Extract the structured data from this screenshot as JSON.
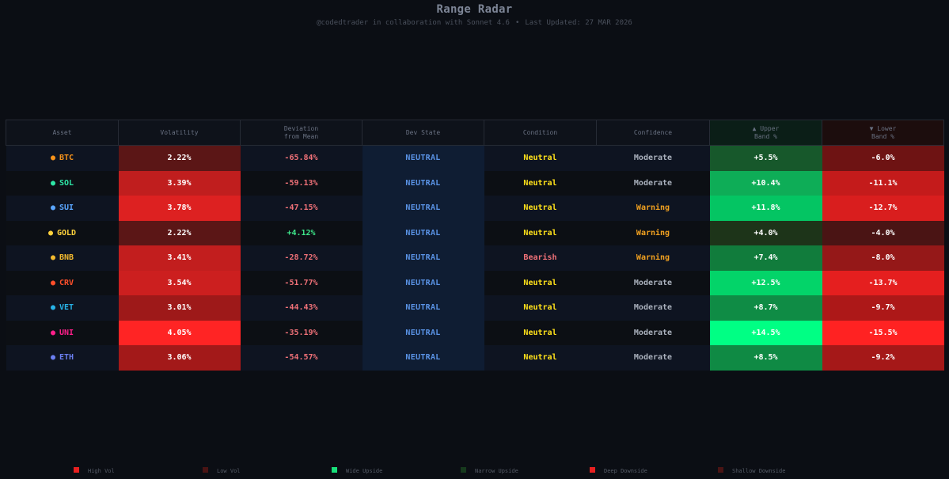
{
  "header": {
    "title": "Range Radar",
    "subtitle_credit": "@codedtrader in collaboration with Sonnet 4.6",
    "separator": "•",
    "subtitle_updated": "Last Updated: 27 MAR 2026"
  },
  "table": {
    "columns": [
      {
        "label": "Asset"
      },
      {
        "label": "Volatility"
      },
      {
        "label": "Deviation",
        "label2": "from Mean"
      },
      {
        "label": "Dev State"
      },
      {
        "label": "Condition"
      },
      {
        "label": "Confidence"
      },
      {
        "label": "▲ Upper",
        "label2": "Band %"
      },
      {
        "label": "▼ Lower",
        "label2": "Band %"
      }
    ],
    "rows": [
      {
        "asset": "BTC",
        "dot": "●",
        "asset_color": "#f7931a",
        "volatility": "2.22%",
        "vol_bg": "#5b1616",
        "deviation": "-65.84%",
        "dev_color": "#f07178",
        "dev_state": "NEUTRAL",
        "condition": "Neutral",
        "cond_color": "#ffe11a",
        "confidence": "Moderate",
        "conf_color": "#aab1bd",
        "upper": "+5.5%",
        "upper_bg": "#17582b",
        "lower": "-6.0%",
        "lower_bg": "#6e1313"
      },
      {
        "asset": "SOL",
        "dot": "●",
        "asset_color": "#2ee6a6",
        "volatility": "3.39%",
        "vol_bg": "#c01e1e",
        "deviation": "-59.13%",
        "dev_color": "#f07178",
        "dev_state": "NEUTRAL",
        "condition": "Neutral",
        "cond_color": "#ffe11a",
        "confidence": "Moderate",
        "conf_color": "#aab1bd",
        "upper": "+10.4%",
        "upper_bg": "#0ead57",
        "lower": "-11.1%",
        "lower_bg": "#c41b1b"
      },
      {
        "asset": "SUI",
        "dot": "●",
        "asset_color": "#5aa6ff",
        "volatility": "3.78%",
        "vol_bg": "#dd2121",
        "deviation": "-47.15%",
        "dev_color": "#f07178",
        "dev_state": "NEUTRAL",
        "condition": "Neutral",
        "cond_color": "#ffe11a",
        "confidence": "Warning",
        "conf_color": "#f0a020",
        "upper": "+11.8%",
        "upper_bg": "#04c563",
        "lower": "-12.7%",
        "lower_bg": "#d91e1e"
      },
      {
        "asset": "GOLD",
        "dot": "●",
        "asset_color": "#ffd23c",
        "volatility": "2.22%",
        "vol_bg": "#5b1616",
        "deviation": "+4.12%",
        "dev_color": "#3ee68a",
        "dev_state": "NEUTRAL",
        "condition": "Neutral",
        "cond_color": "#ffe11a",
        "confidence": "Warning",
        "conf_color": "#f0a020",
        "upper": "+4.0%",
        "upper_bg": "#1d3419",
        "lower": "-4.0%",
        "lower_bg": "#4a1414"
      },
      {
        "asset": "BNB",
        "dot": "●",
        "asset_color": "#f3ba2f",
        "volatility": "3.41%",
        "vol_bg": "#c21e1e",
        "deviation": "-28.72%",
        "dev_color": "#f07178",
        "dev_state": "NEUTRAL",
        "condition": "Bearish",
        "cond_color": "#f07178",
        "confidence": "Warning",
        "conf_color": "#f0a020",
        "upper": "+7.4%",
        "upper_bg": "#117c3c",
        "lower": "-8.0%",
        "lower_bg": "#951818"
      },
      {
        "asset": "CRV",
        "dot": "●",
        "asset_color": "#ff4f2a",
        "volatility": "3.54%",
        "vol_bg": "#cc1f1f",
        "deviation": "-51.77%",
        "dev_color": "#f07178",
        "dev_state": "NEUTRAL",
        "condition": "Neutral",
        "cond_color": "#ffe11a",
        "confidence": "Moderate",
        "conf_color": "#aab1bd",
        "upper": "+12.5%",
        "upper_bg": "#03d469",
        "lower": "-13.7%",
        "lower_bg": "#e51f1f"
      },
      {
        "asset": "VET",
        "dot": "●",
        "asset_color": "#27b3e8",
        "volatility": "3.01%",
        "vol_bg": "#9e1919",
        "deviation": "-44.43%",
        "dev_color": "#f07178",
        "dev_state": "NEUTRAL",
        "condition": "Neutral",
        "cond_color": "#ffe11a",
        "confidence": "Moderate",
        "conf_color": "#aab1bd",
        "upper": "+8.7%",
        "upper_bg": "#0f8c45",
        "lower": "-9.7%",
        "lower_bg": "#ad1818"
      },
      {
        "asset": "UNI",
        "dot": "●",
        "asset_color": "#ff1f8a",
        "volatility": "4.05%",
        "vol_bg": "#ff2424",
        "deviation": "-35.19%",
        "dev_color": "#f07178",
        "dev_state": "NEUTRAL",
        "condition": "Neutral",
        "cond_color": "#ffe11a",
        "confidence": "Moderate",
        "conf_color": "#aab1bd",
        "upper": "+14.5%",
        "upper_bg": "#00ff84",
        "lower": "-15.5%",
        "lower_bg": "#ff2222"
      },
      {
        "asset": "ETH",
        "dot": "●",
        "asset_color": "#6b7ff0",
        "volatility": "3.06%",
        "vol_bg": "#a31919",
        "deviation": "-54.57%",
        "dev_color": "#f07178",
        "dev_state": "NEUTRAL",
        "condition": "Neutral",
        "cond_color": "#ffe11a",
        "confidence": "Moderate",
        "conf_color": "#aab1bd",
        "upper": "+8.5%",
        "upper_bg": "#0f8a44",
        "lower": "-9.2%",
        "lower_bg": "#a51818"
      }
    ]
  },
  "legend": [
    {
      "label": "High Vol",
      "color": "#e82020"
    },
    {
      "label": "Low Vol",
      "color": "#4a1414"
    },
    {
      "label": "Wide Upside",
      "color": "#18e07a"
    },
    {
      "label": "Narrow Upside",
      "color": "#163a1d"
    },
    {
      "label": "Deep Downside",
      "color": "#e82020"
    },
    {
      "label": "Shallow Downside",
      "color": "#4a1414"
    }
  ]
}
